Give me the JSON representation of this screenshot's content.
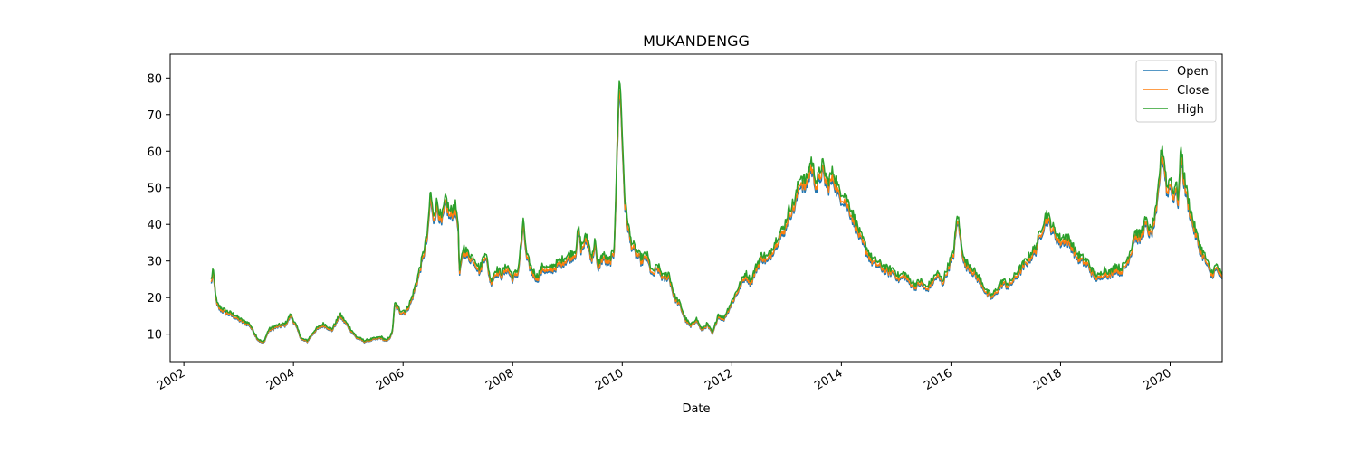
{
  "chart_data": {
    "type": "line",
    "title": "MUKANDENGG",
    "xlabel": "Date",
    "ylabel": "",
    "xlim": [
      2001.75,
      2020.95
    ],
    "ylim": [
      2.5,
      86.5
    ],
    "y_ticks": [
      10,
      20,
      30,
      40,
      50,
      60,
      70,
      80
    ],
    "x_ticks": [
      2002,
      2004,
      2006,
      2008,
      2010,
      2012,
      2014,
      2016,
      2018,
      2020
    ],
    "x_tick_labels": [
      "2002",
      "2004",
      "2006",
      "2008",
      "2010",
      "2012",
      "2014",
      "2016",
      "2018",
      "2020"
    ],
    "legend": {
      "placement": "top-right",
      "entries": [
        "Open",
        "Close",
        "High"
      ]
    },
    "grid": false,
    "base_points": [
      [
        2002.5,
        24
      ],
      [
        2002.53,
        27
      ],
      [
        2002.56,
        23
      ],
      [
        2002.6,
        18
      ],
      [
        2002.65,
        17
      ],
      [
        2002.75,
        16
      ],
      [
        2002.9,
        15
      ],
      [
        2003.05,
        13.5
      ],
      [
        2003.2,
        12.5
      ],
      [
        2003.35,
        8.5
      ],
      [
        2003.45,
        7.5
      ],
      [
        2003.55,
        11
      ],
      [
        2003.7,
        12
      ],
      [
        2003.85,
        12.5
      ],
      [
        2003.95,
        15
      ],
      [
        2004.05,
        12
      ],
      [
        2004.15,
        8.5
      ],
      [
        2004.25,
        8
      ],
      [
        2004.4,
        11
      ],
      [
        2004.55,
        12.5
      ],
      [
        2004.7,
        11
      ],
      [
        2004.85,
        15
      ],
      [
        2005.0,
        12
      ],
      [
        2005.15,
        9
      ],
      [
        2005.3,
        8
      ],
      [
        2005.45,
        8.5
      ],
      [
        2005.6,
        9
      ],
      [
        2005.7,
        8
      ],
      [
        2005.8,
        10
      ],
      [
        2005.85,
        18
      ],
      [
        2005.95,
        16
      ],
      [
        2006.05,
        16
      ],
      [
        2006.15,
        19
      ],
      [
        2006.25,
        24
      ],
      [
        2006.35,
        30
      ],
      [
        2006.45,
        37
      ],
      [
        2006.5,
        48
      ],
      [
        2006.55,
        41
      ],
      [
        2006.62,
        45
      ],
      [
        2006.7,
        40
      ],
      [
        2006.78,
        46
      ],
      [
        2006.85,
        42
      ],
      [
        2006.95,
        44
      ],
      [
        2007.0,
        41
      ],
      [
        2007.03,
        26
      ],
      [
        2007.1,
        33
      ],
      [
        2007.2,
        31
      ],
      [
        2007.3,
        30
      ],
      [
        2007.4,
        27
      ],
      [
        2007.5,
        32
      ],
      [
        2007.6,
        24
      ],
      [
        2007.7,
        27
      ],
      [
        2007.8,
        26
      ],
      [
        2007.9,
        28
      ],
      [
        2008.0,
        25
      ],
      [
        2008.1,
        27
      ],
      [
        2008.2,
        40
      ],
      [
        2008.25,
        31
      ],
      [
        2008.35,
        27
      ],
      [
        2008.45,
        25
      ],
      [
        2008.55,
        28
      ],
      [
        2008.65,
        27
      ],
      [
        2008.75,
        28
      ],
      [
        2008.85,
        29
      ],
      [
        2008.95,
        30
      ],
      [
        2009.05,
        31
      ],
      [
        2009.15,
        32
      ],
      [
        2009.2,
        38
      ],
      [
        2009.25,
        33
      ],
      [
        2009.35,
        36
      ],
      [
        2009.45,
        30
      ],
      [
        2009.5,
        35
      ],
      [
        2009.55,
        28
      ],
      [
        2009.65,
        31
      ],
      [
        2009.75,
        29
      ],
      [
        2009.85,
        32
      ],
      [
        2009.92,
        65
      ],
      [
        2009.95,
        80
      ],
      [
        2009.98,
        70
      ],
      [
        2010.05,
        45
      ],
      [
        2010.15,
        35
      ],
      [
        2010.25,
        32
      ],
      [
        2010.35,
        30
      ],
      [
        2010.45,
        31
      ],
      [
        2010.55,
        26
      ],
      [
        2010.65,
        28
      ],
      [
        2010.75,
        25
      ],
      [
        2010.85,
        26
      ],
      [
        2010.95,
        20
      ],
      [
        2011.05,
        18
      ],
      [
        2011.15,
        14
      ],
      [
        2011.25,
        12
      ],
      [
        2011.35,
        14
      ],
      [
        2011.45,
        11
      ],
      [
        2011.55,
        12.5
      ],
      [
        2011.65,
        10
      ],
      [
        2011.75,
        15
      ],
      [
        2011.85,
        14
      ],
      [
        2011.95,
        17
      ],
      [
        2012.05,
        20
      ],
      [
        2012.15,
        23
      ],
      [
        2012.25,
        26
      ],
      [
        2012.35,
        24
      ],
      [
        2012.45,
        28
      ],
      [
        2012.55,
        31
      ],
      [
        2012.65,
        30
      ],
      [
        2012.75,
        33
      ],
      [
        2012.85,
        36
      ],
      [
        2012.95,
        38
      ],
      [
        2013.05,
        43
      ],
      [
        2013.15,
        45
      ],
      [
        2013.25,
        52
      ],
      [
        2013.35,
        50
      ],
      [
        2013.45,
        56
      ],
      [
        2013.55,
        50
      ],
      [
        2013.65,
        55
      ],
      [
        2013.75,
        50
      ],
      [
        2013.85,
        53
      ],
      [
        2013.95,
        48
      ],
      [
        2014.05,
        47
      ],
      [
        2014.15,
        44
      ],
      [
        2014.25,
        40
      ],
      [
        2014.35,
        36
      ],
      [
        2014.45,
        33
      ],
      [
        2014.55,
        30
      ],
      [
        2014.65,
        29
      ],
      [
        2014.75,
        28
      ],
      [
        2014.85,
        27
      ],
      [
        2014.95,
        27
      ],
      [
        2015.05,
        25
      ],
      [
        2015.15,
        26
      ],
      [
        2015.25,
        24
      ],
      [
        2015.35,
        23
      ],
      [
        2015.45,
        24
      ],
      [
        2015.55,
        22
      ],
      [
        2015.65,
        24
      ],
      [
        2015.75,
        26
      ],
      [
        2015.85,
        24
      ],
      [
        2015.95,
        28
      ],
      [
        2016.05,
        32
      ],
      [
        2016.12,
        42
      ],
      [
        2016.18,
        35
      ],
      [
        2016.25,
        29
      ],
      [
        2016.35,
        28
      ],
      [
        2016.45,
        26
      ],
      [
        2016.55,
        24
      ],
      [
        2016.65,
        21
      ],
      [
        2016.75,
        20
      ],
      [
        2016.85,
        22
      ],
      [
        2016.95,
        24
      ],
      [
        2017.05,
        23
      ],
      [
        2017.15,
        25
      ],
      [
        2017.25,
        27
      ],
      [
        2017.35,
        29
      ],
      [
        2017.45,
        31
      ],
      [
        2017.55,
        33
      ],
      [
        2017.65,
        38
      ],
      [
        2017.75,
        42
      ],
      [
        2017.8,
        40
      ],
      [
        2017.9,
        37
      ],
      [
        2018.0,
        35
      ],
      [
        2018.1,
        36
      ],
      [
        2018.2,
        34
      ],
      [
        2018.3,
        31
      ],
      [
        2018.4,
        30
      ],
      [
        2018.5,
        29
      ],
      [
        2018.6,
        26
      ],
      [
        2018.7,
        25
      ],
      [
        2018.8,
        27
      ],
      [
        2018.9,
        26
      ],
      [
        2019.0,
        28
      ],
      [
        2019.1,
        27
      ],
      [
        2019.2,
        29
      ],
      [
        2019.3,
        33
      ],
      [
        2019.35,
        37
      ],
      [
        2019.45,
        36
      ],
      [
        2019.55,
        40
      ],
      [
        2019.65,
        37
      ],
      [
        2019.75,
        43
      ],
      [
        2019.85,
        60
      ],
      [
        2019.9,
        55
      ],
      [
        2019.95,
        48
      ],
      [
        2020.0,
        52
      ],
      [
        2020.05,
        47
      ],
      [
        2020.1,
        50
      ],
      [
        2020.15,
        46
      ],
      [
        2020.2,
        60
      ],
      [
        2020.25,
        52
      ],
      [
        2020.35,
        44
      ],
      [
        2020.45,
        38
      ],
      [
        2020.55,
        33
      ],
      [
        2020.65,
        30
      ],
      [
        2020.75,
        26
      ],
      [
        2020.85,
        28
      ],
      [
        2020.95,
        25
      ]
    ],
    "series": [
      {
        "name": "Open",
        "color": "#1f77b4",
        "offset": -0.5
      },
      {
        "name": "Close",
        "color": "#ff7f0e",
        "offset": 0
      },
      {
        "name": "High",
        "color": "#2ca02c",
        "offset": 1.0
      }
    ]
  }
}
